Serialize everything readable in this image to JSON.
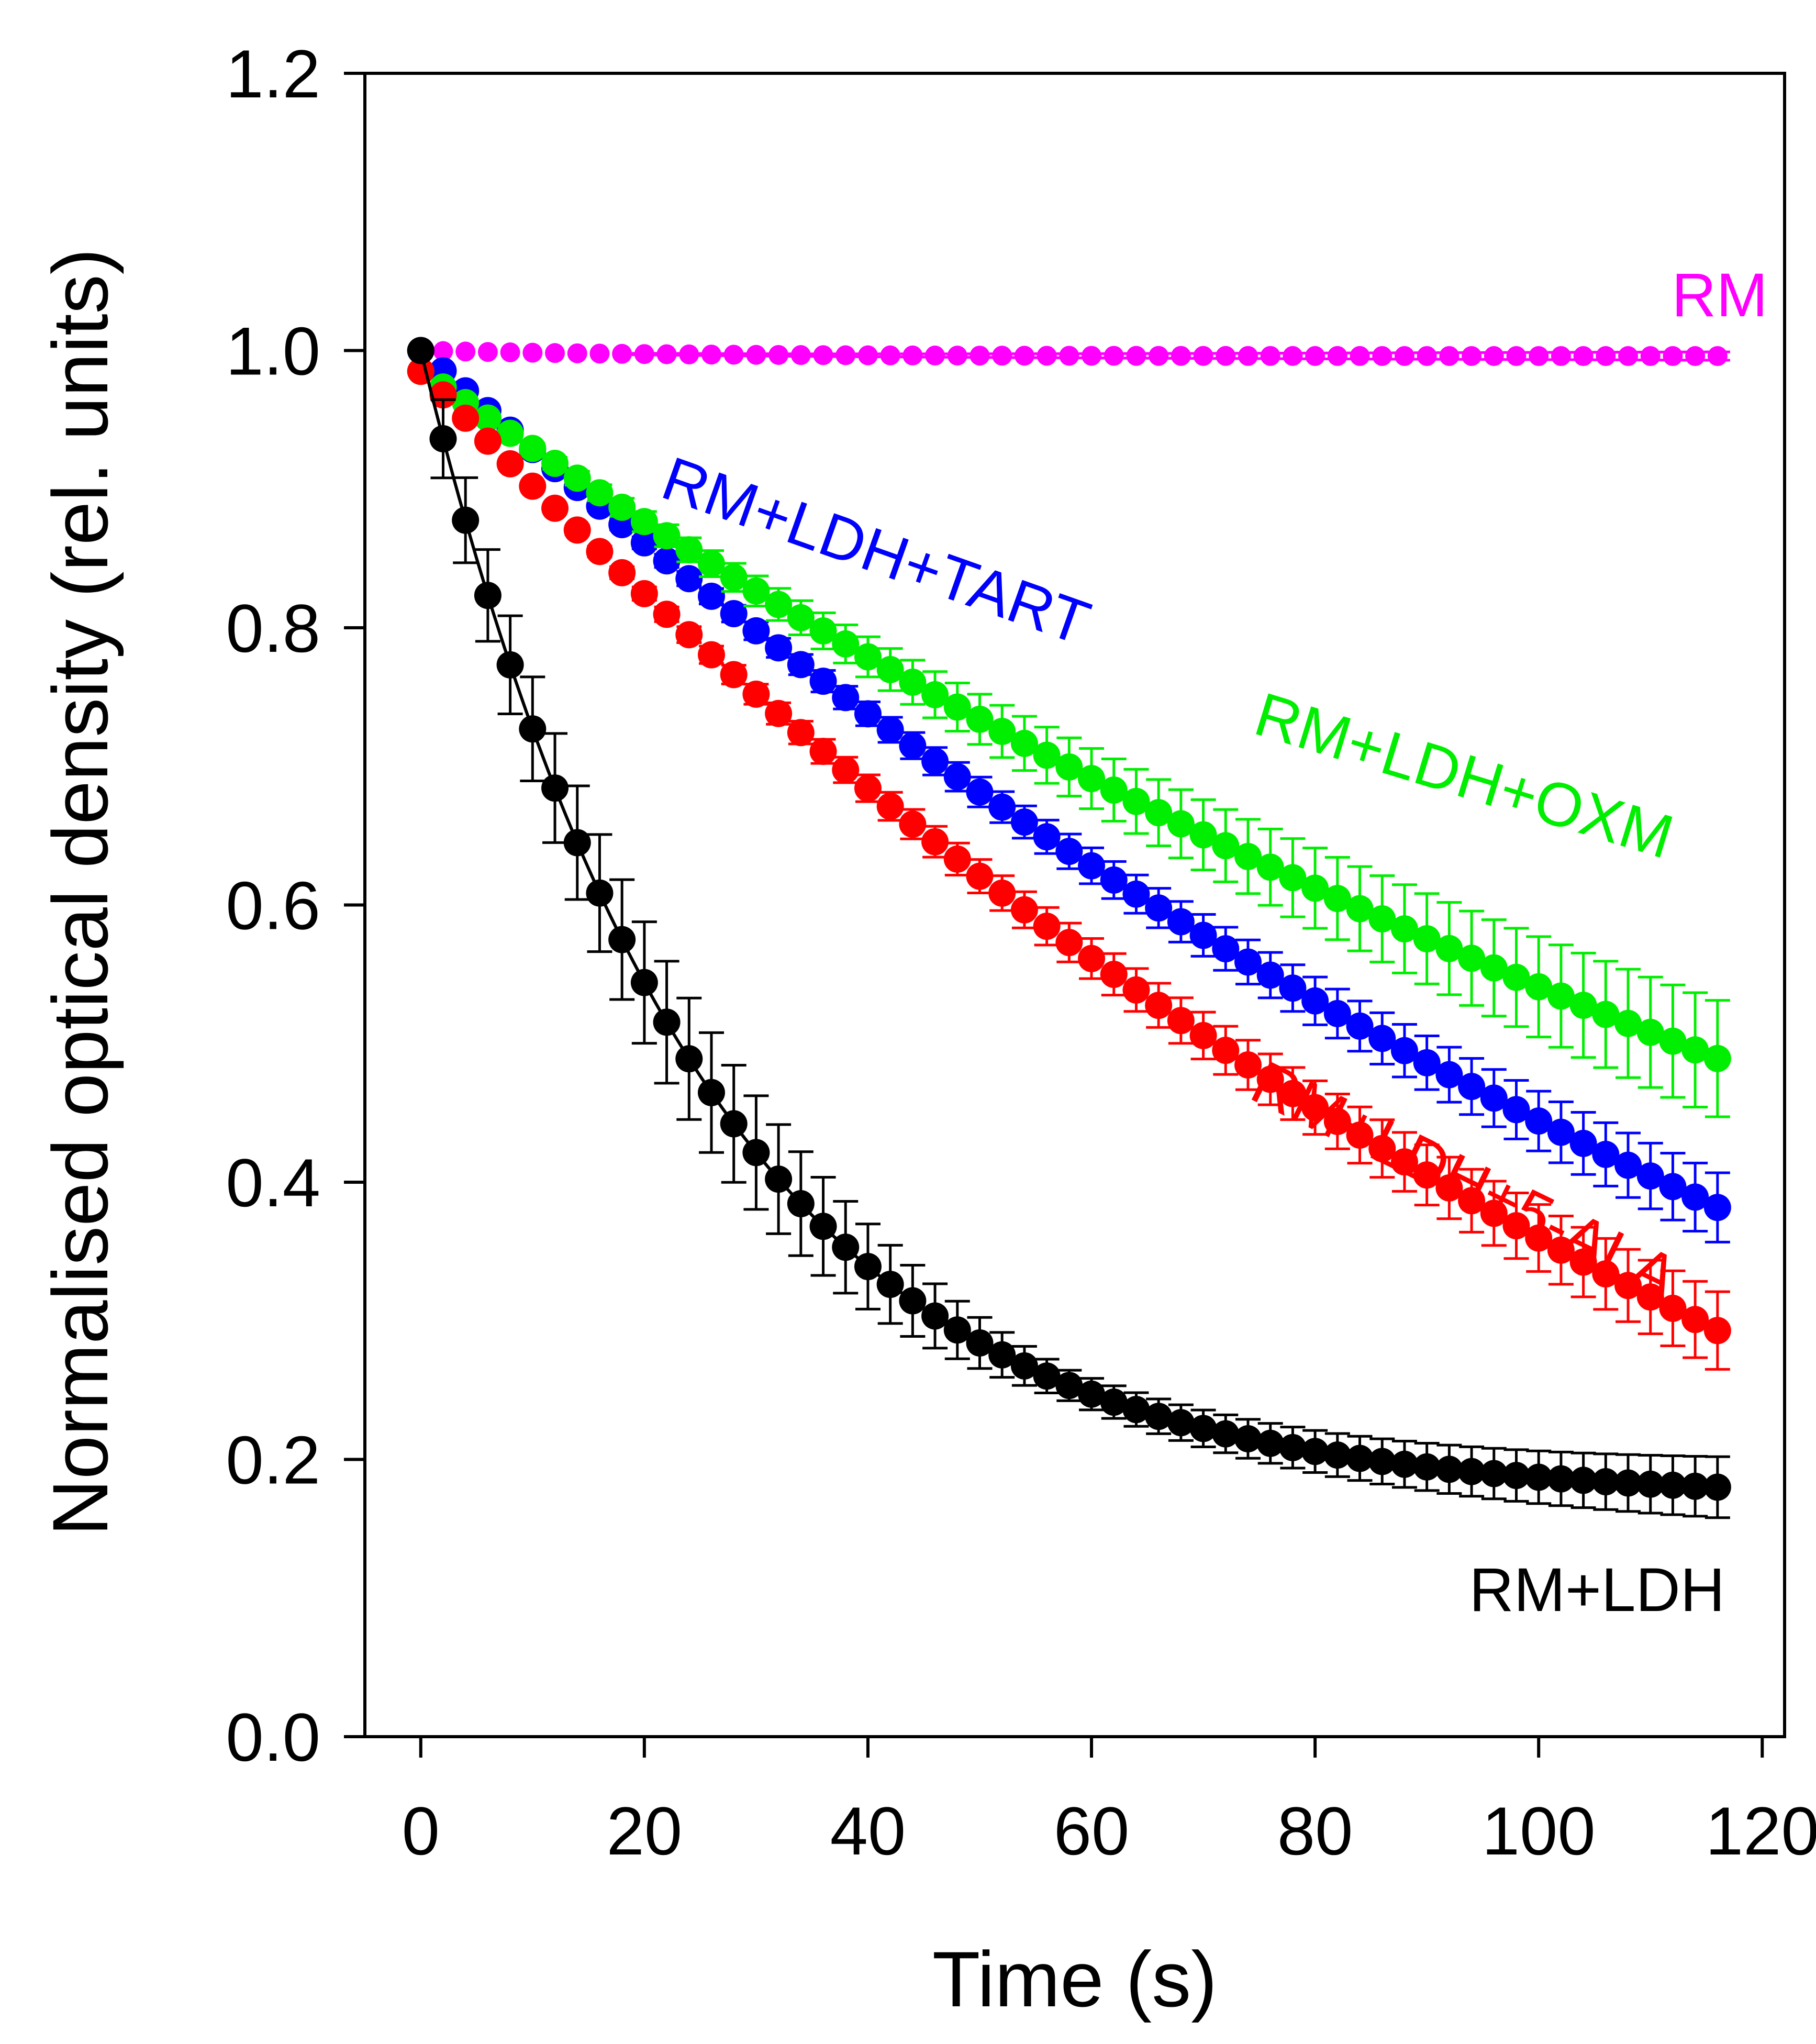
{
  "chart_data": {
    "type": "scatter",
    "title": "",
    "xlabel": "Time (s)",
    "ylabel": "Normalised optical density (rel. units)",
    "xlim": [
      -5,
      122
    ],
    "ylim": [
      0.0,
      1.2
    ],
    "xticks": [
      0,
      20,
      40,
      60,
      80,
      100,
      120
    ],
    "yticks": [
      0.0,
      0.2,
      0.4,
      0.6,
      0.8,
      1.0,
      1.2
    ],
    "xtick_labels": [
      "0",
      "20",
      "40",
      "60",
      "80",
      "100",
      "120"
    ],
    "ytick_labels": [
      "0.0",
      "0.2",
      "0.4",
      "0.6",
      "0.8",
      "1.0",
      "1.2"
    ],
    "grid": false,
    "x_start": 0,
    "x_step": 2,
    "n_points": 59,
    "series": [
      {
        "name": "RM",
        "label": "RM",
        "color": "#ff00ff",
        "model": "exp",
        "y0": 1.0,
        "yinf": 0.996,
        "tau": 20,
        "err_end": 0.003,
        "err_growth": "linear",
        "fit_line": false
      },
      {
        "name": "RM+LDH+TART",
        "label": "RM+LDH+TART",
        "color": "#0000ff",
        "model": "exp",
        "y0": 1.0,
        "yinf": -0.25,
        "tau": 170,
        "err_end": 0.025,
        "err_growth": "linear",
        "fit_line": false
      },
      {
        "name": "RM+LDH+OXM",
        "label": "RM+LDH+OXM",
        "color": "#00ee00",
        "model": "exp",
        "y0": 0.985,
        "yinf": -0.1,
        "tau": 190,
        "err_end": 0.042,
        "err_growth": "linear",
        "fit_line": false
      },
      {
        "name": "RM+LDH+5-ALA",
        "label": "RM+LDH+5-ALA",
        "color": "#ff0000",
        "model": "exp",
        "y0": 0.985,
        "yinf": -0.3,
        "tau": 150,
        "err_end": 0.028,
        "err_growth": "linear",
        "fit_line": false
      },
      {
        "name": "RM+LDH",
        "label": "RM+LDH",
        "color": "#000000",
        "model": "exp",
        "y0": 1.0,
        "yinf": 0.172,
        "tau": 25,
        "err_end": 0.022,
        "err_growth": "hump",
        "fit_line": true
      }
    ]
  }
}
